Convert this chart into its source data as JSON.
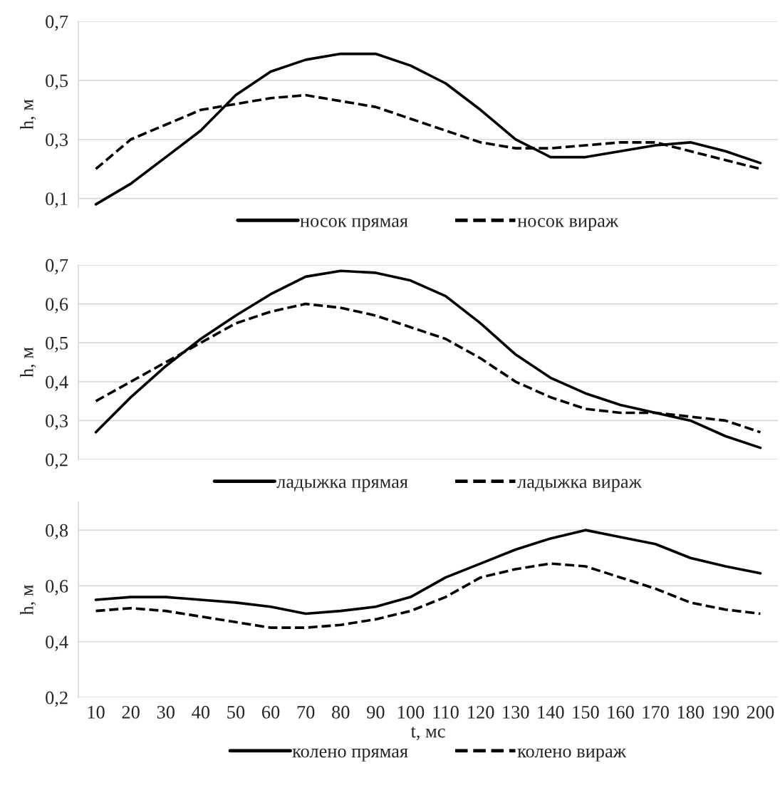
{
  "chart_data": [
    {
      "type": "line",
      "ylabel": "h, м",
      "categories": [
        "10",
        "20",
        "30",
        "40",
        "50",
        "60",
        "70",
        "80",
        "90",
        "100",
        "110",
        "120",
        "130",
        "140",
        "150",
        "160",
        "170",
        "180",
        "190",
        "200"
      ],
      "series": [
        {
          "name": "носок прямая",
          "color": "#000000",
          "line_style": "solid",
          "values": [
            0.08,
            0.15,
            0.24,
            0.33,
            0.45,
            0.53,
            0.57,
            0.59,
            0.59,
            0.55,
            0.49,
            0.4,
            0.3,
            0.24,
            0.24,
            0.26,
            0.28,
            0.29,
            0.26,
            0.22
          ]
        },
        {
          "name": "носок вираж",
          "color": "#000000",
          "line_style": "dashed",
          "values": [
            0.2,
            0.3,
            0.35,
            0.4,
            0.42,
            0.44,
            0.45,
            0.43,
            0.41,
            0.37,
            0.33,
            0.29,
            0.27,
            0.27,
            0.28,
            0.29,
            0.29,
            0.26,
            0.23,
            0.2
          ]
        }
      ],
      "ylim": [
        0.07,
        0.7
      ],
      "yticks": [
        {
          "value": 0.1,
          "label": "0,1"
        },
        {
          "value": 0.3,
          "label": "0,3"
        },
        {
          "value": 0.5,
          "label": "0,5"
        },
        {
          "value": 0.7,
          "label": "0,7"
        }
      ],
      "grid": "y",
      "legend": "bottom",
      "tick_labels": "y",
      "marker": "none"
    },
    {
      "type": "line",
      "ylabel": "h, м",
      "categories": [
        "10",
        "20",
        "30",
        "40",
        "50",
        "60",
        "70",
        "80",
        "90",
        "100",
        "110",
        "120",
        "130",
        "140",
        "150",
        "160",
        "170",
        "180",
        "190",
        "200"
      ],
      "series": [
        {
          "name": "ладыжка прямая",
          "color": "#000000",
          "line_style": "solid",
          "values": [
            0.27,
            0.36,
            0.44,
            0.51,
            0.57,
            0.625,
            0.67,
            0.685,
            0.68,
            0.66,
            0.62,
            0.55,
            0.47,
            0.41,
            0.37,
            0.34,
            0.32,
            0.3,
            0.26,
            0.23
          ]
        },
        {
          "name": "ладыжка вираж",
          "color": "#000000",
          "line_style": "dashed",
          "values": [
            0.35,
            0.4,
            0.45,
            0.5,
            0.55,
            0.58,
            0.6,
            0.59,
            0.57,
            0.54,
            0.51,
            0.46,
            0.4,
            0.36,
            0.33,
            0.32,
            0.32,
            0.31,
            0.3,
            0.27
          ]
        }
      ],
      "ylim": [
        0.2,
        0.7
      ],
      "yticks": [
        {
          "value": 0.2,
          "label": "0,2"
        },
        {
          "value": 0.3,
          "label": "0,3"
        },
        {
          "value": 0.4,
          "label": "0,4"
        },
        {
          "value": 0.5,
          "label": "0,5"
        },
        {
          "value": 0.6,
          "label": "0,6"
        },
        {
          "value": 0.7,
          "label": "0,7"
        }
      ],
      "grid": "y",
      "legend": "bottom",
      "tick_labels": "y",
      "marker": "none"
    },
    {
      "type": "line",
      "xlabel": "t, мс",
      "ylabel": "h, м",
      "categories": [
        "10",
        "20",
        "30",
        "40",
        "50",
        "60",
        "70",
        "80",
        "90",
        "100",
        "110",
        "120",
        "130",
        "140",
        "150",
        "160",
        "170",
        "180",
        "190",
        "200"
      ],
      "series": [
        {
          "name": "колено прямая",
          "color": "#000000",
          "line_style": "solid",
          "values": [
            0.55,
            0.56,
            0.56,
            0.55,
            0.54,
            0.525,
            0.5,
            0.51,
            0.525,
            0.56,
            0.63,
            0.68,
            0.73,
            0.77,
            0.8,
            0.775,
            0.75,
            0.7,
            0.67,
            0.645
          ]
        },
        {
          "name": "колено вираж",
          "color": "#000000",
          "line_style": "dashed",
          "values": [
            0.51,
            0.52,
            0.51,
            0.49,
            0.47,
            0.45,
            0.45,
            0.46,
            0.48,
            0.51,
            0.56,
            0.63,
            0.66,
            0.68,
            0.67,
            0.63,
            0.59,
            0.54,
            0.515,
            0.5
          ]
        }
      ],
      "ylim": [
        0.2,
        0.9
      ],
      "yticks": [
        {
          "value": 0.2,
          "label": "0,2"
        },
        {
          "value": 0.4,
          "label": "0,4"
        },
        {
          "value": 0.6,
          "label": "0,6"
        },
        {
          "value": 0.8,
          "label": "0,8"
        }
      ],
      "grid": "y",
      "legend": "bottom",
      "marker": "none"
    }
  ]
}
